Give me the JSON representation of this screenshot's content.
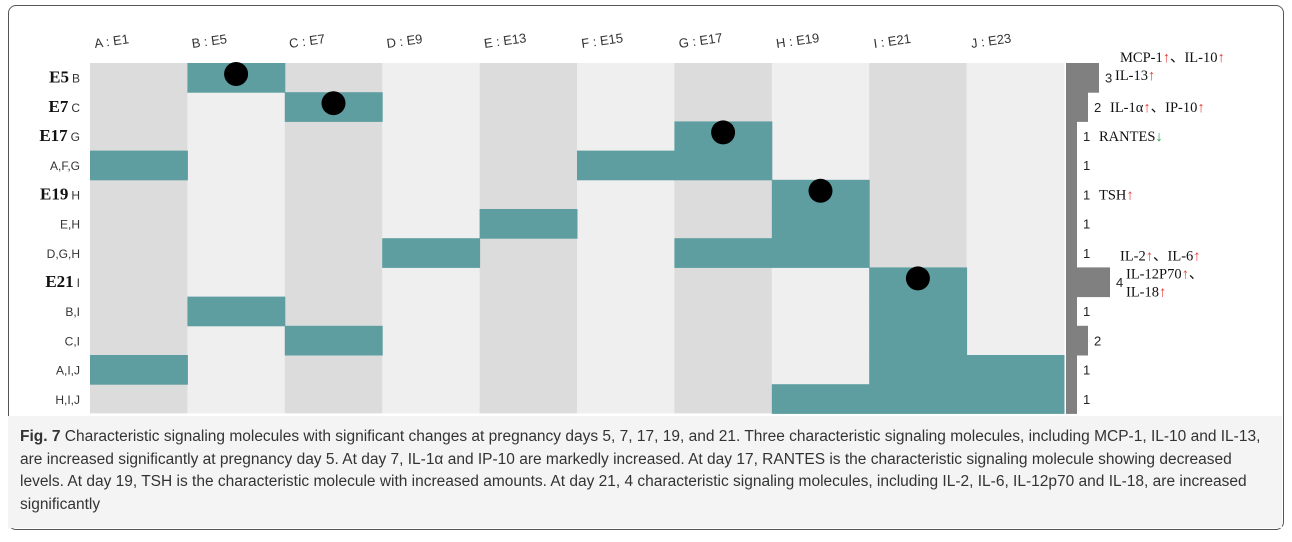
{
  "figure": {
    "columns": [
      "A : E1",
      "B : E5",
      "C : E7",
      "D : E9",
      "E : E13",
      "F : E15",
      "G : E17",
      "H : E19",
      "I : E21",
      "J : E23"
    ],
    "column_keys": [
      "A",
      "B",
      "C",
      "D",
      "E",
      "F",
      "G",
      "H",
      "I",
      "J"
    ],
    "fill_color": "#5f9ea0",
    "bar_color": "#808080",
    "rows": [
      {
        "day": "E5",
        "label": "B",
        "members": [
          "B"
        ],
        "dot": true,
        "count": 3,
        "notes": [
          [
            {
              "t": "MCP-1"
            },
            {
              "t": "↑",
              "color": "#e53935"
            },
            {
              "t": "、IL-10"
            },
            {
              "t": "↑",
              "color": "#e53935"
            }
          ],
          [
            {
              "t": "IL-13"
            },
            {
              "t": "↑",
              "color": "#e53935"
            }
          ]
        ]
      },
      {
        "day": "E7",
        "label": "C",
        "members": [
          "C"
        ],
        "dot": true,
        "count": 2,
        "notes": [
          [
            {
              "t": "IL-1α"
            },
            {
              "t": "↑",
              "color": "#e53935"
            },
            {
              "t": "、IP-10"
            },
            {
              "t": "↑",
              "color": "#e53935"
            }
          ]
        ]
      },
      {
        "day": "E17",
        "label": "G",
        "members": [
          "G"
        ],
        "dot": true,
        "count": 1,
        "notes": [
          [
            {
              "t": "RANTES"
            },
            {
              "t": "↓",
              "color": "#2e9e4f"
            }
          ]
        ]
      },
      {
        "label": "A,F,G",
        "members": [
          "A",
          "F",
          "G"
        ],
        "count": 1
      },
      {
        "day": "E19",
        "label": "H",
        "members": [
          "H"
        ],
        "dot": true,
        "count": 1,
        "notes": [
          [
            {
              "t": "TSH"
            },
            {
              "t": "↑",
              "color": "#e53935"
            }
          ]
        ]
      },
      {
        "label": "E,H",
        "members": [
          "E",
          "H"
        ],
        "count": 1
      },
      {
        "label": "D,G,H",
        "members": [
          "D",
          "G",
          "H"
        ],
        "count": 1
      },
      {
        "day": "E21",
        "label": "I",
        "members": [
          "I"
        ],
        "dot": true,
        "count": 4,
        "notes": [
          [
            {
              "t": "IL-2"
            },
            {
              "t": "↑",
              "color": "#e53935"
            },
            {
              "t": "、IL-6"
            },
            {
              "t": "↑",
              "color": "#e53935"
            }
          ],
          [
            {
              "t": "IL-12P70"
            },
            {
              "t": "↑",
              "color": "#e53935"
            },
            {
              "t": "、"
            }
          ],
          [
            {
              "t": "IL-18"
            },
            {
              "t": "↑",
              "color": "#e53935"
            }
          ]
        ]
      },
      {
        "label": "B,I",
        "members": [
          "B",
          "I"
        ],
        "count": 1
      },
      {
        "label": "C,I",
        "members": [
          "C",
          "I"
        ],
        "count": 2
      },
      {
        "label": "A,I,J",
        "members": [
          "A",
          "I",
          "J"
        ],
        "count": 1
      },
      {
        "label": "H,I,J",
        "members": [
          "H",
          "I",
          "J"
        ],
        "count": 1
      }
    ],
    "caption_label": "Fig. 7",
    "caption": "Characteristic signaling molecules with significant changes at pregnancy days 5, 7, 17, 19, and 21. Three characteristic signaling molecules, including MCP-1, IL-10 and IL-13, are increased significantly at pregnancy day 5. At day 7, IL-1α and IP-10 are markedly increased. At day 17, RANTES is the characteristic signaling molecule showing decreased levels. At day 19, TSH is the characteristic molecule with increased amounts. At day 21, 4 characteristic signaling molecules, including IL-2, IL-6, IL-12p70 and IL-18, are increased significantly"
  }
}
